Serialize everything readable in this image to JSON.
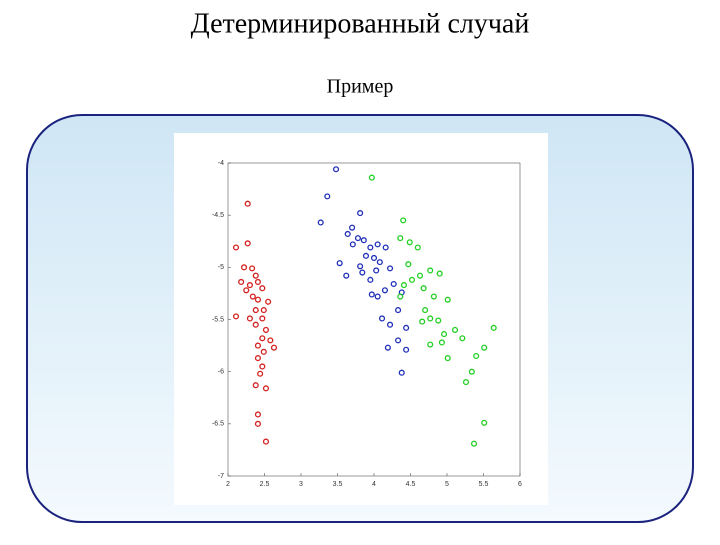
{
  "header": {
    "title": "Детерминированный случай",
    "subtitle": "Пример"
  },
  "chart_data": {
    "type": "scatter",
    "xlim": [
      2,
      6
    ],
    "xticks": [
      2,
      2.5,
      3,
      3.5,
      4,
      4.5,
      5,
      5.5,
      6
    ],
    "ylim": [
      -7,
      -4
    ],
    "yticks": [
      -7,
      -6.5,
      -6,
      -5.5,
      -5,
      -4.5,
      -4
    ],
    "series": [
      {
        "color": "#d42020",
        "x": [
          2.27,
          2.11,
          2.27,
          2.22,
          2.33,
          2.18,
          2.38,
          2.3,
          2.41,
          2.25,
          2.47,
          2.34,
          2.41,
          2.55,
          2.38,
          2.49,
          2.11,
          2.3,
          2.47,
          2.38,
          2.52,
          2.47,
          2.58,
          2.41,
          2.63,
          2.49,
          2.41,
          2.47,
          2.44,
          2.38,
          2.52,
          2.41,
          2.41,
          2.52
        ],
        "y": [
          -4.39,
          -4.81,
          -4.77,
          -5.0,
          -5.01,
          -5.14,
          -5.08,
          -5.17,
          -5.14,
          -5.22,
          -5.2,
          -5.28,
          -5.31,
          -5.33,
          -5.41,
          -5.41,
          -5.47,
          -5.49,
          -5.49,
          -5.55,
          -5.6,
          -5.68,
          -5.7,
          -5.75,
          -5.77,
          -5.81,
          -5.87,
          -5.95,
          -6.02,
          -6.13,
          -6.16,
          -6.41,
          -6.5,
          -6.67
        ]
      },
      {
        "color": "#1f2fb8",
        "x": [
          3.48,
          3.36,
          3.27,
          3.81,
          3.7,
          3.64,
          3.78,
          3.86,
          3.71,
          3.95,
          4.05,
          3.89,
          4.16,
          4.0,
          4.08,
          3.53,
          3.81,
          3.84,
          4.03,
          3.62,
          4.22,
          3.95,
          4.15,
          4.05,
          4.27,
          4.38,
          3.97,
          4.11,
          4.22,
          4.33,
          4.44,
          4.33,
          4.19,
          4.44,
          4.38
        ],
        "y": [
          -4.06,
          -4.32,
          -4.57,
          -4.48,
          -4.62,
          -4.68,
          -4.72,
          -4.74,
          -4.78,
          -4.81,
          -4.78,
          -4.89,
          -4.81,
          -4.91,
          -4.95,
          -4.96,
          -4.99,
          -5.05,
          -5.03,
          -5.08,
          -5.01,
          -5.12,
          -5.22,
          -5.28,
          -5.16,
          -5.24,
          -5.26,
          -5.49,
          -5.55,
          -5.41,
          -5.58,
          -5.7,
          -5.77,
          -5.79,
          -6.01
        ]
      },
      {
        "color": "#22d022",
        "x": [
          3.97,
          4.4,
          4.36,
          4.49,
          4.6,
          4.47,
          4.52,
          4.63,
          4.77,
          4.9,
          4.41,
          4.68,
          4.36,
          4.82,
          5.01,
          4.7,
          4.77,
          4.66,
          4.88,
          4.96,
          5.11,
          4.77,
          4.93,
          5.01,
          5.21,
          5.4,
          5.51,
          5.64,
          5.34,
          5.26,
          5.51,
          5.37
        ],
        "y": [
          -4.14,
          -4.55,
          -4.72,
          -4.76,
          -4.81,
          -4.97,
          -5.12,
          -5.08,
          -5.03,
          -5.06,
          -5.17,
          -5.2,
          -5.28,
          -5.28,
          -5.31,
          -5.41,
          -5.49,
          -5.52,
          -5.51,
          -5.64,
          -5.6,
          -5.74,
          -5.72,
          -5.87,
          -5.68,
          -5.85,
          -5.77,
          -5.58,
          -6.0,
          -6.1,
          -6.49,
          -6.69
        ]
      }
    ]
  }
}
